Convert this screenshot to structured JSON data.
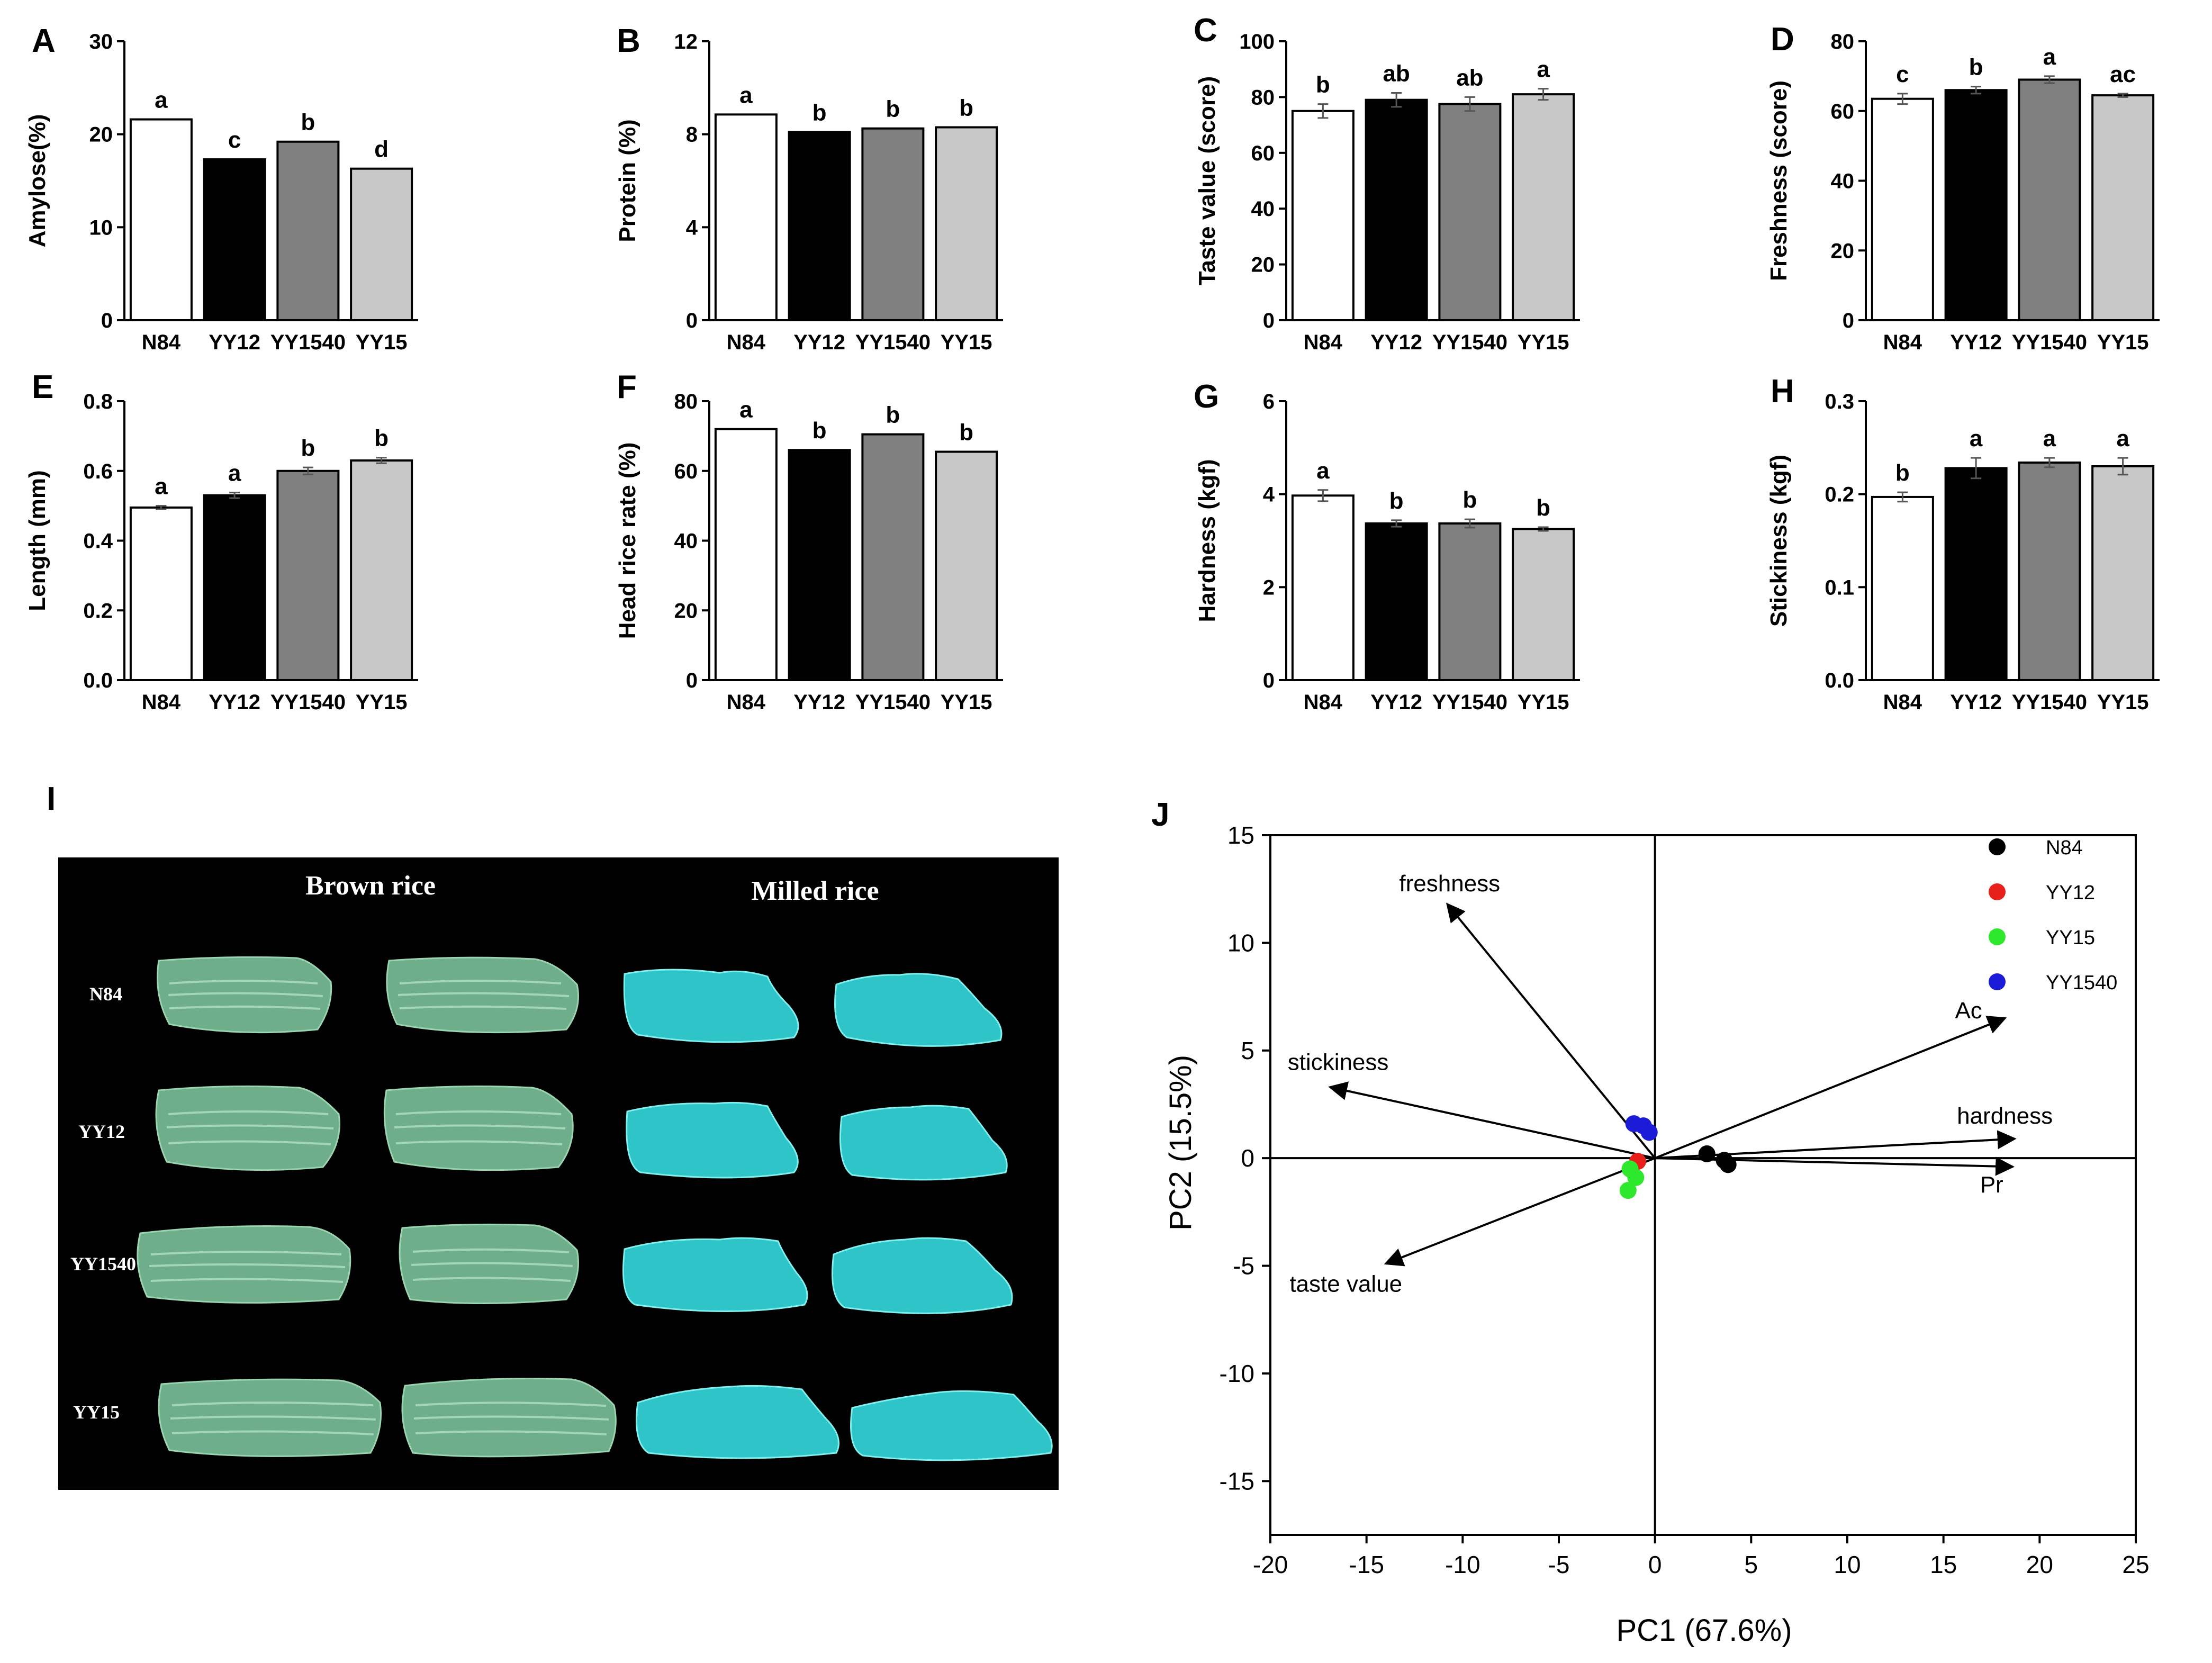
{
  "figure": {
    "colors": {
      "N84": "#ffffff",
      "YY12": "#000000",
      "YY1540": "#808080",
      "YY15": "#c8c8c8",
      "axis": "#000000",
      "photo_bg": "#000000",
      "brown_rice": "#6fae8a",
      "milled_rice": "#2ec4c8"
    }
  },
  "chart_data": [
    {
      "panel": "A",
      "type": "bar",
      "ylabel": "Amylose(%)",
      "categories": [
        "N84",
        "YY12",
        "YY1540",
        "YY15"
      ],
      "values": [
        21.6,
        17.3,
        19.2,
        16.3
      ],
      "errors": [
        0,
        0,
        0,
        0
      ],
      "letters": [
        "a",
        "c",
        "b",
        "d"
      ],
      "ylim": [
        0,
        30
      ],
      "yticks": [
        0,
        10,
        20,
        30
      ],
      "ytick_labels": [
        "0",
        "10",
        "20",
        "30"
      ]
    },
    {
      "panel": "B",
      "type": "bar",
      "ylabel": "Protein (%)",
      "categories": [
        "N84",
        "YY12",
        "YY1540",
        "YY15"
      ],
      "values": [
        8.85,
        8.1,
        8.25,
        8.3
      ],
      "errors": [
        0,
        0,
        0,
        0
      ],
      "letters": [
        "a",
        "b",
        "b",
        "b"
      ],
      "ylim": [
        0,
        12
      ],
      "yticks": [
        0,
        4,
        8,
        12
      ],
      "ytick_labels": [
        "0",
        "4",
        "8",
        "12"
      ]
    },
    {
      "panel": "C",
      "type": "bar",
      "ylabel": "Taste value (score)",
      "categories": [
        "N84",
        "YY12",
        "YY1540",
        "YY15"
      ],
      "values": [
        75,
        79,
        77.5,
        81
      ],
      "errors": [
        2.5,
        2.5,
        2.5,
        2
      ],
      "letters": [
        "b",
        "ab",
        "ab",
        "a"
      ],
      "ylim": [
        0,
        100
      ],
      "yticks": [
        0,
        20,
        40,
        60,
        80,
        100
      ],
      "ytick_labels": [
        "0",
        "20",
        "40",
        "60",
        "80",
        "100"
      ]
    },
    {
      "panel": "D",
      "type": "bar",
      "ylabel": "Freshness (score)",
      "categories": [
        "N84",
        "YY12",
        "YY1540",
        "YY15"
      ],
      "values": [
        63.5,
        66,
        69,
        64.5
      ],
      "errors": [
        1.5,
        1,
        1,
        0.5
      ],
      "letters": [
        "c",
        "b",
        "a",
        "ac"
      ],
      "ylim": [
        0,
        80
      ],
      "yticks": [
        0,
        20,
        40,
        60,
        80
      ],
      "ytick_labels": [
        "0",
        "20",
        "40",
        "60",
        "80"
      ]
    },
    {
      "panel": "E",
      "type": "bar",
      "ylabel": "Length (mm)",
      "categories": [
        "N84",
        "YY12",
        "YY1540",
        "YY15"
      ],
      "values": [
        0.495,
        0.53,
        0.6,
        0.63
      ],
      "errors": [
        0.005,
        0.008,
        0.01,
        0.008
      ],
      "letters": [
        "a",
        "a",
        "b",
        "b"
      ],
      "ylim": [
        0,
        0.8
      ],
      "yticks": [
        0,
        0.2,
        0.4,
        0.6,
        0.8
      ],
      "ytick_labels": [
        "0.0",
        "0.2",
        "0.4",
        "0.6",
        "0.8"
      ]
    },
    {
      "panel": "F",
      "type": "bar",
      "ylabel": "Head rice rate (%)",
      "categories": [
        "N84",
        "YY12",
        "YY1540",
        "YY15"
      ],
      "values": [
        72,
        66,
        70.5,
        65.5
      ],
      "errors": [
        0,
        0,
        0,
        0
      ],
      "letters": [
        "a",
        "b",
        "b",
        "b"
      ],
      "ylim": [
        0,
        80
      ],
      "yticks": [
        0,
        20,
        40,
        60,
        80
      ],
      "ytick_labels": [
        "0",
        "20",
        "40",
        "60",
        "80"
      ]
    },
    {
      "panel": "G",
      "type": "bar",
      "ylabel": "Hardness (kgf)",
      "categories": [
        "N84",
        "YY12",
        "YY1540",
        "YY15"
      ],
      "values": [
        3.97,
        3.37,
        3.37,
        3.25
      ],
      "errors": [
        0.12,
        0.07,
        0.09,
        0.04
      ],
      "letters": [
        "a",
        "b",
        "b",
        "b"
      ],
      "ylim": [
        0,
        6
      ],
      "yticks": [
        0,
        2,
        4,
        6
      ],
      "ytick_labels": [
        "0",
        "2",
        "4",
        "6"
      ]
    },
    {
      "panel": "H",
      "type": "bar",
      "ylabel": "Stickiness (kgf)",
      "categories": [
        "N84",
        "YY12",
        "YY1540",
        "YY15"
      ],
      "values": [
        0.197,
        0.228,
        0.234,
        0.23
      ],
      "errors": [
        0.005,
        0.011,
        0.005,
        0.009
      ],
      "letters": [
        "b",
        "a",
        "a",
        "a"
      ],
      "ylim": [
        0,
        0.3
      ],
      "yticks": [
        0,
        0.1,
        0.2,
        0.3
      ],
      "ytick_labels": [
        "0.0",
        "0.1",
        "0.2",
        "0.3"
      ]
    },
    {
      "panel": "J",
      "type": "scatter",
      "xlabel": "PC1 (67.6%)",
      "ylabel": "PC2 (15.5%)",
      "xlim": [
        -20,
        25
      ],
      "ylim": [
        -17.5,
        15
      ],
      "xticks": [
        -20,
        -15,
        -10,
        -5,
        0,
        5,
        10,
        15,
        20,
        25
      ],
      "yticks": [
        -15,
        -10,
        -5,
        0,
        5,
        10,
        15
      ],
      "series": [
        {
          "name": "N84",
          "color": "#000000",
          "points": [
            [
              2.7,
              0.2
            ],
            [
              3.6,
              -0.1
            ],
            [
              3.8,
              -0.3
            ]
          ]
        },
        {
          "name": "YY12",
          "color": "#e8201c",
          "points": [
            [
              -0.9,
              -0.15
            ]
          ]
        },
        {
          "name": "YY15",
          "color": "#2ee82e",
          "points": [
            [
              -1.3,
              -0.5
            ],
            [
              -1.0,
              -0.9
            ],
            [
              -1.4,
              -1.5
            ]
          ]
        },
        {
          "name": "YY1540",
          "color": "#1b1bd8",
          "points": [
            [
              -1.1,
              1.6
            ],
            [
              -0.6,
              1.5
            ],
            [
              -0.3,
              1.2
            ]
          ]
        }
      ],
      "vectors": [
        {
          "name": "freshness",
          "x": -10.8,
          "y": 11.8,
          "label_x": -13.3,
          "label_y": 12.4
        },
        {
          "name": "stickiness",
          "x": -16.9,
          "y": 3.3,
          "label_x": -19.1,
          "label_y": 4.1
        },
        {
          "name": "taste value",
          "x": -14.0,
          "y": -4.9,
          "label_x": -19.0,
          "label_y": -6.2
        },
        {
          "name": "Ac",
          "x": 18.2,
          "y": 6.5,
          "label_x": 15.6,
          "label_y": 6.5
        },
        {
          "name": "hardness",
          "x": 18.7,
          "y": 0.9,
          "label_x": 15.7,
          "label_y": 1.6
        },
        {
          "name": "Pr",
          "x": 18.6,
          "y": -0.4,
          "label_x": 16.9,
          "label_y": -1.6
        }
      ]
    }
  ],
  "panel_I": {
    "letter": "I",
    "headers": [
      "Brown rice",
      "Milled rice"
    ],
    "rows": [
      "N84",
      "YY12",
      "YY1540",
      "YY15"
    ]
  },
  "panel_J_letter": "J"
}
